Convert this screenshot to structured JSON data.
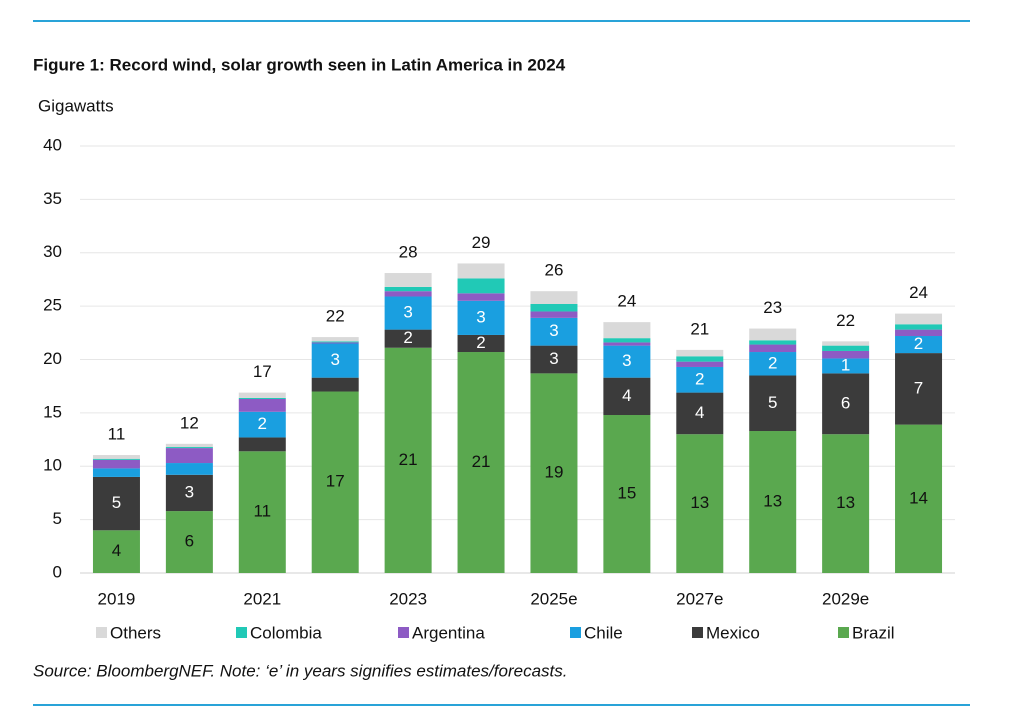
{
  "chart_data": {
    "type": "bar",
    "stacked": true,
    "title": "Figure 1:  Record wind, solar growth seen in Latin America in 2024",
    "y_label": "Gigawatts",
    "source": "Source: BloombergNEF. Note: ‘e’ in years signifies estimates/forecasts.",
    "categories": [
      "2019",
      null,
      "2021",
      null,
      "2023",
      null,
      "2025e",
      null,
      "2027e",
      null,
      "2029e",
      null
    ],
    "series": [
      {
        "name": "Brazil",
        "color": "#5aa84f",
        "values": [
          4.0,
          5.8,
          11.4,
          17.0,
          21.1,
          20.7,
          18.7,
          14.8,
          13.0,
          13.3,
          13.0,
          13.9
        ],
        "value_labels": [
          "4",
          "6",
          "11",
          "17",
          "21",
          "21",
          "19",
          "15",
          "13",
          "13",
          "13",
          "14"
        ]
      },
      {
        "name": "Mexico",
        "color": "#3b3b3b",
        "values": [
          5.0,
          3.4,
          1.3,
          1.3,
          1.7,
          1.6,
          2.6,
          3.5,
          3.9,
          5.2,
          5.7,
          6.7
        ],
        "value_labels": [
          "5",
          "3",
          null,
          null,
          "2",
          "2",
          "3",
          "4",
          "4",
          "5",
          "6",
          "7"
        ]
      },
      {
        "name": "Chile",
        "color": "#1a9fe0",
        "values": [
          0.8,
          1.1,
          2.4,
          3.2,
          3.1,
          3.2,
          2.6,
          3.0,
          2.4,
          2.2,
          1.4,
          1.6
        ],
        "value_labels": [
          null,
          null,
          "2",
          "3",
          "3",
          "3",
          "3",
          "3",
          "2",
          "2",
          "1",
          "2"
        ]
      },
      {
        "name": "Argentina",
        "color": "#8d5bc4",
        "values": [
          0.8,
          1.4,
          1.2,
          0.1,
          0.5,
          0.7,
          0.6,
          0.3,
          0.5,
          0.7,
          0.7,
          0.6
        ]
      },
      {
        "name": "Colombia",
        "color": "#21c9b6",
        "values": [
          0.1,
          0.1,
          0.1,
          0.1,
          0.4,
          1.4,
          0.7,
          0.4,
          0.5,
          0.4,
          0.5,
          0.5
        ]
      },
      {
        "name": "Others",
        "color": "#d9d9d9",
        "values": [
          0.35,
          0.3,
          0.5,
          0.4,
          1.3,
          1.4,
          1.2,
          1.5,
          0.6,
          1.1,
          0.4,
          1.0
        ]
      }
    ],
    "totals": [
      11,
      12,
      17,
      22,
      28,
      29,
      26,
      24,
      21,
      23,
      22,
      24
    ],
    "ylim": [
      0,
      40
    ],
    "yticks": [
      0,
      5,
      10,
      15,
      20,
      25,
      30,
      35,
      40
    ],
    "grid": true
  }
}
